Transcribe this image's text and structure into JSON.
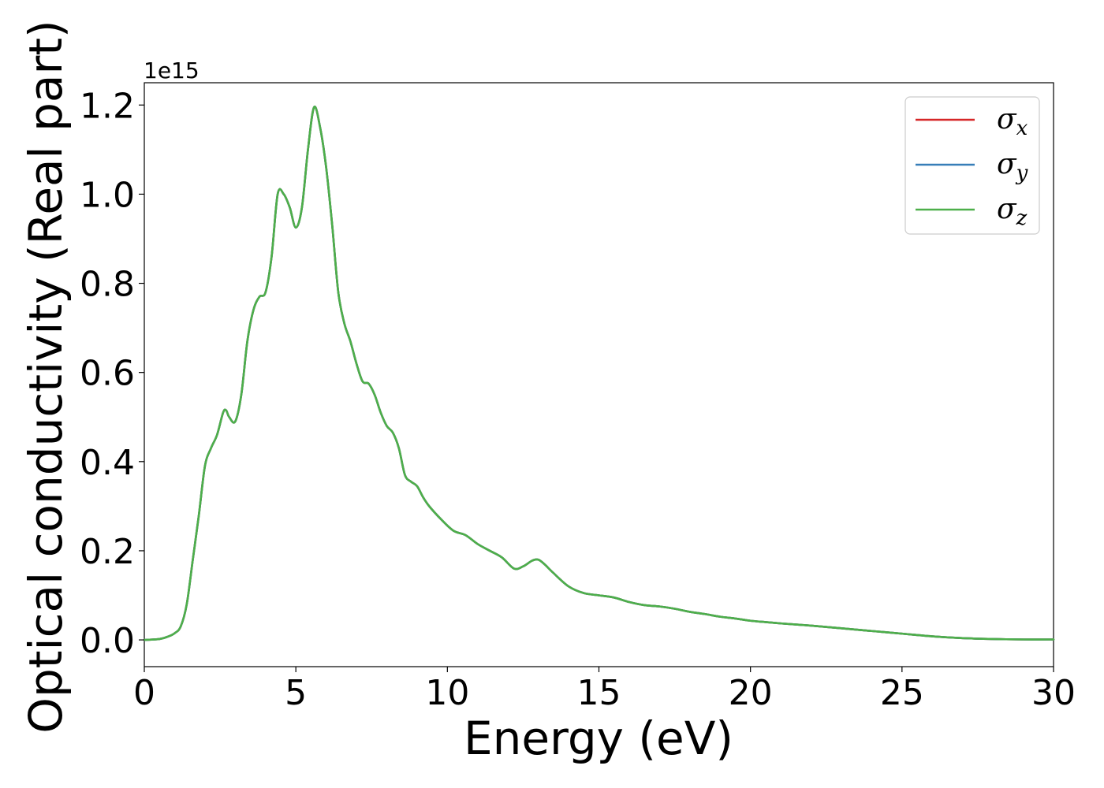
{
  "chart_data": {
    "type": "line",
    "title": "",
    "xlabel": "Energy (eV)",
    "ylabel": "Optical conductivity (Real part)",
    "y_offset_label": "1e15",
    "xlim": [
      0,
      30
    ],
    "ylim": [
      -0.06,
      1.25
    ],
    "xticks": [
      0,
      5,
      10,
      15,
      20,
      25,
      30
    ],
    "yticks": [
      0.0,
      0.2,
      0.4,
      0.6,
      0.8,
      1.0,
      1.2
    ],
    "xtick_labels": [
      "0",
      "5",
      "10",
      "15",
      "20",
      "25",
      "30"
    ],
    "ytick_labels": [
      "0.0",
      "0.2",
      "0.4",
      "0.6",
      "0.8",
      "1.0",
      "1.2"
    ],
    "grid": false,
    "legend_position": "top-right",
    "x": [
      0,
      0.5,
      0.8,
      1.0,
      1.2,
      1.4,
      1.6,
      1.8,
      2.0,
      2.2,
      2.4,
      2.6,
      2.7,
      2.8,
      3.0,
      3.2,
      3.4,
      3.6,
      3.8,
      4.0,
      4.2,
      4.4,
      4.6,
      4.8,
      5.0,
      5.2,
      5.4,
      5.6,
      5.8,
      6.0,
      6.2,
      6.4,
      6.6,
      6.8,
      7.0,
      7.2,
      7.4,
      7.6,
      7.8,
      8.0,
      8.2,
      8.4,
      8.6,
      8.8,
      9.0,
      9.2,
      9.4,
      9.8,
      10.2,
      10.6,
      11.0,
      11.4,
      11.8,
      12.2,
      12.5,
      12.8,
      13.0,
      13.2,
      13.5,
      14.0,
      14.5,
      15.0,
      15.5,
      16.0,
      16.5,
      17.0,
      17.5,
      18.0,
      18.5,
      19.0,
      19.5,
      20.0,
      20.5,
      21.0,
      22.0,
      23.0,
      24.0,
      25.0,
      26.0,
      27.0,
      28.0,
      29.0,
      30.0
    ],
    "series": [
      {
        "name": "σx",
        "label_main": "σ",
        "label_sub": "x",
        "color": "#d62728",
        "values": [
          0.0,
          0.002,
          0.008,
          0.015,
          0.03,
          0.08,
          0.18,
          0.28,
          0.39,
          0.43,
          0.46,
          0.51,
          0.515,
          0.5,
          0.49,
          0.55,
          0.67,
          0.74,
          0.77,
          0.78,
          0.86,
          1.0,
          1.0,
          0.97,
          0.925,
          0.97,
          1.1,
          1.195,
          1.15,
          1.06,
          0.93,
          0.78,
          0.71,
          0.67,
          0.62,
          0.58,
          0.575,
          0.55,
          0.51,
          0.48,
          0.465,
          0.43,
          0.37,
          0.355,
          0.345,
          0.32,
          0.3,
          0.27,
          0.245,
          0.235,
          0.215,
          0.2,
          0.185,
          0.16,
          0.165,
          0.178,
          0.18,
          0.17,
          0.15,
          0.12,
          0.105,
          0.1,
          0.095,
          0.085,
          0.078,
          0.075,
          0.07,
          0.063,
          0.058,
          0.052,
          0.048,
          0.043,
          0.04,
          0.037,
          0.032,
          0.026,
          0.02,
          0.014,
          0.008,
          0.004,
          0.002,
          0.001,
          0.001
        ]
      },
      {
        "name": "σy",
        "label_main": "σ",
        "label_sub": "y",
        "color": "#377eb8",
        "values": [
          0.0,
          0.002,
          0.008,
          0.015,
          0.03,
          0.08,
          0.18,
          0.28,
          0.39,
          0.43,
          0.46,
          0.51,
          0.515,
          0.5,
          0.49,
          0.55,
          0.67,
          0.74,
          0.77,
          0.78,
          0.86,
          1.0,
          1.0,
          0.97,
          0.925,
          0.97,
          1.1,
          1.195,
          1.15,
          1.06,
          0.93,
          0.78,
          0.71,
          0.67,
          0.62,
          0.58,
          0.575,
          0.55,
          0.51,
          0.48,
          0.465,
          0.43,
          0.37,
          0.355,
          0.345,
          0.32,
          0.3,
          0.27,
          0.245,
          0.235,
          0.215,
          0.2,
          0.185,
          0.16,
          0.165,
          0.178,
          0.18,
          0.17,
          0.15,
          0.12,
          0.105,
          0.1,
          0.095,
          0.085,
          0.078,
          0.075,
          0.07,
          0.063,
          0.058,
          0.052,
          0.048,
          0.043,
          0.04,
          0.037,
          0.032,
          0.026,
          0.02,
          0.014,
          0.008,
          0.004,
          0.002,
          0.001,
          0.001
        ]
      },
      {
        "name": "σz",
        "label_main": "σ",
        "label_sub": "z",
        "color": "#4daf4a",
        "values": [
          0.0,
          0.002,
          0.008,
          0.015,
          0.03,
          0.08,
          0.18,
          0.28,
          0.39,
          0.43,
          0.46,
          0.51,
          0.515,
          0.5,
          0.49,
          0.55,
          0.67,
          0.74,
          0.77,
          0.78,
          0.86,
          1.0,
          1.0,
          0.97,
          0.925,
          0.97,
          1.1,
          1.195,
          1.15,
          1.06,
          0.93,
          0.78,
          0.71,
          0.67,
          0.62,
          0.58,
          0.575,
          0.55,
          0.51,
          0.48,
          0.465,
          0.43,
          0.37,
          0.355,
          0.345,
          0.32,
          0.3,
          0.27,
          0.245,
          0.235,
          0.215,
          0.2,
          0.185,
          0.16,
          0.165,
          0.178,
          0.18,
          0.17,
          0.15,
          0.12,
          0.105,
          0.1,
          0.095,
          0.085,
          0.078,
          0.075,
          0.07,
          0.063,
          0.058,
          0.052,
          0.048,
          0.043,
          0.04,
          0.037,
          0.032,
          0.026,
          0.02,
          0.014,
          0.008,
          0.004,
          0.002,
          0.001,
          0.001
        ]
      }
    ]
  }
}
